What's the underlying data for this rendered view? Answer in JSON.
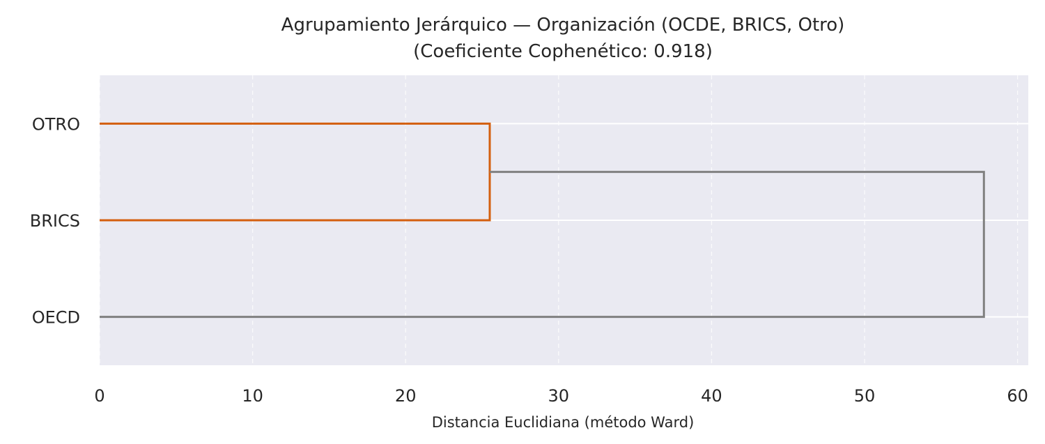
{
  "chart_data": {
    "type": "dendrogram",
    "title": "Agrupamiento Jerárquico — Organización (OCDE, BRICS, Otro)",
    "subtitle": "(Coeficiente Cophenético: 0.918)",
    "xlabel": "Distancia Euclidiana (método Ward)",
    "ylabel": "",
    "orientation": "horizontal",
    "xlim": [
      0,
      60.7
    ],
    "xticks": [
      0,
      10,
      20,
      30,
      40,
      50,
      60
    ],
    "grid": true,
    "leaves": [
      "OTRO",
      "BRICS",
      "OECD"
    ],
    "links": [
      {
        "children": [
          "OTRO",
          "BRICS"
        ],
        "distance": 25.5,
        "color": "#d45f0f"
      },
      {
        "children": [
          "OTRO+BRICS",
          "OECD"
        ],
        "distance": 57.8,
        "color": "#808080"
      }
    ]
  },
  "colors": {
    "plot_background": "#eaeaf2",
    "grid": "#ffffff",
    "cluster_1": "#d45f0f",
    "above_threshold": "#808080"
  }
}
